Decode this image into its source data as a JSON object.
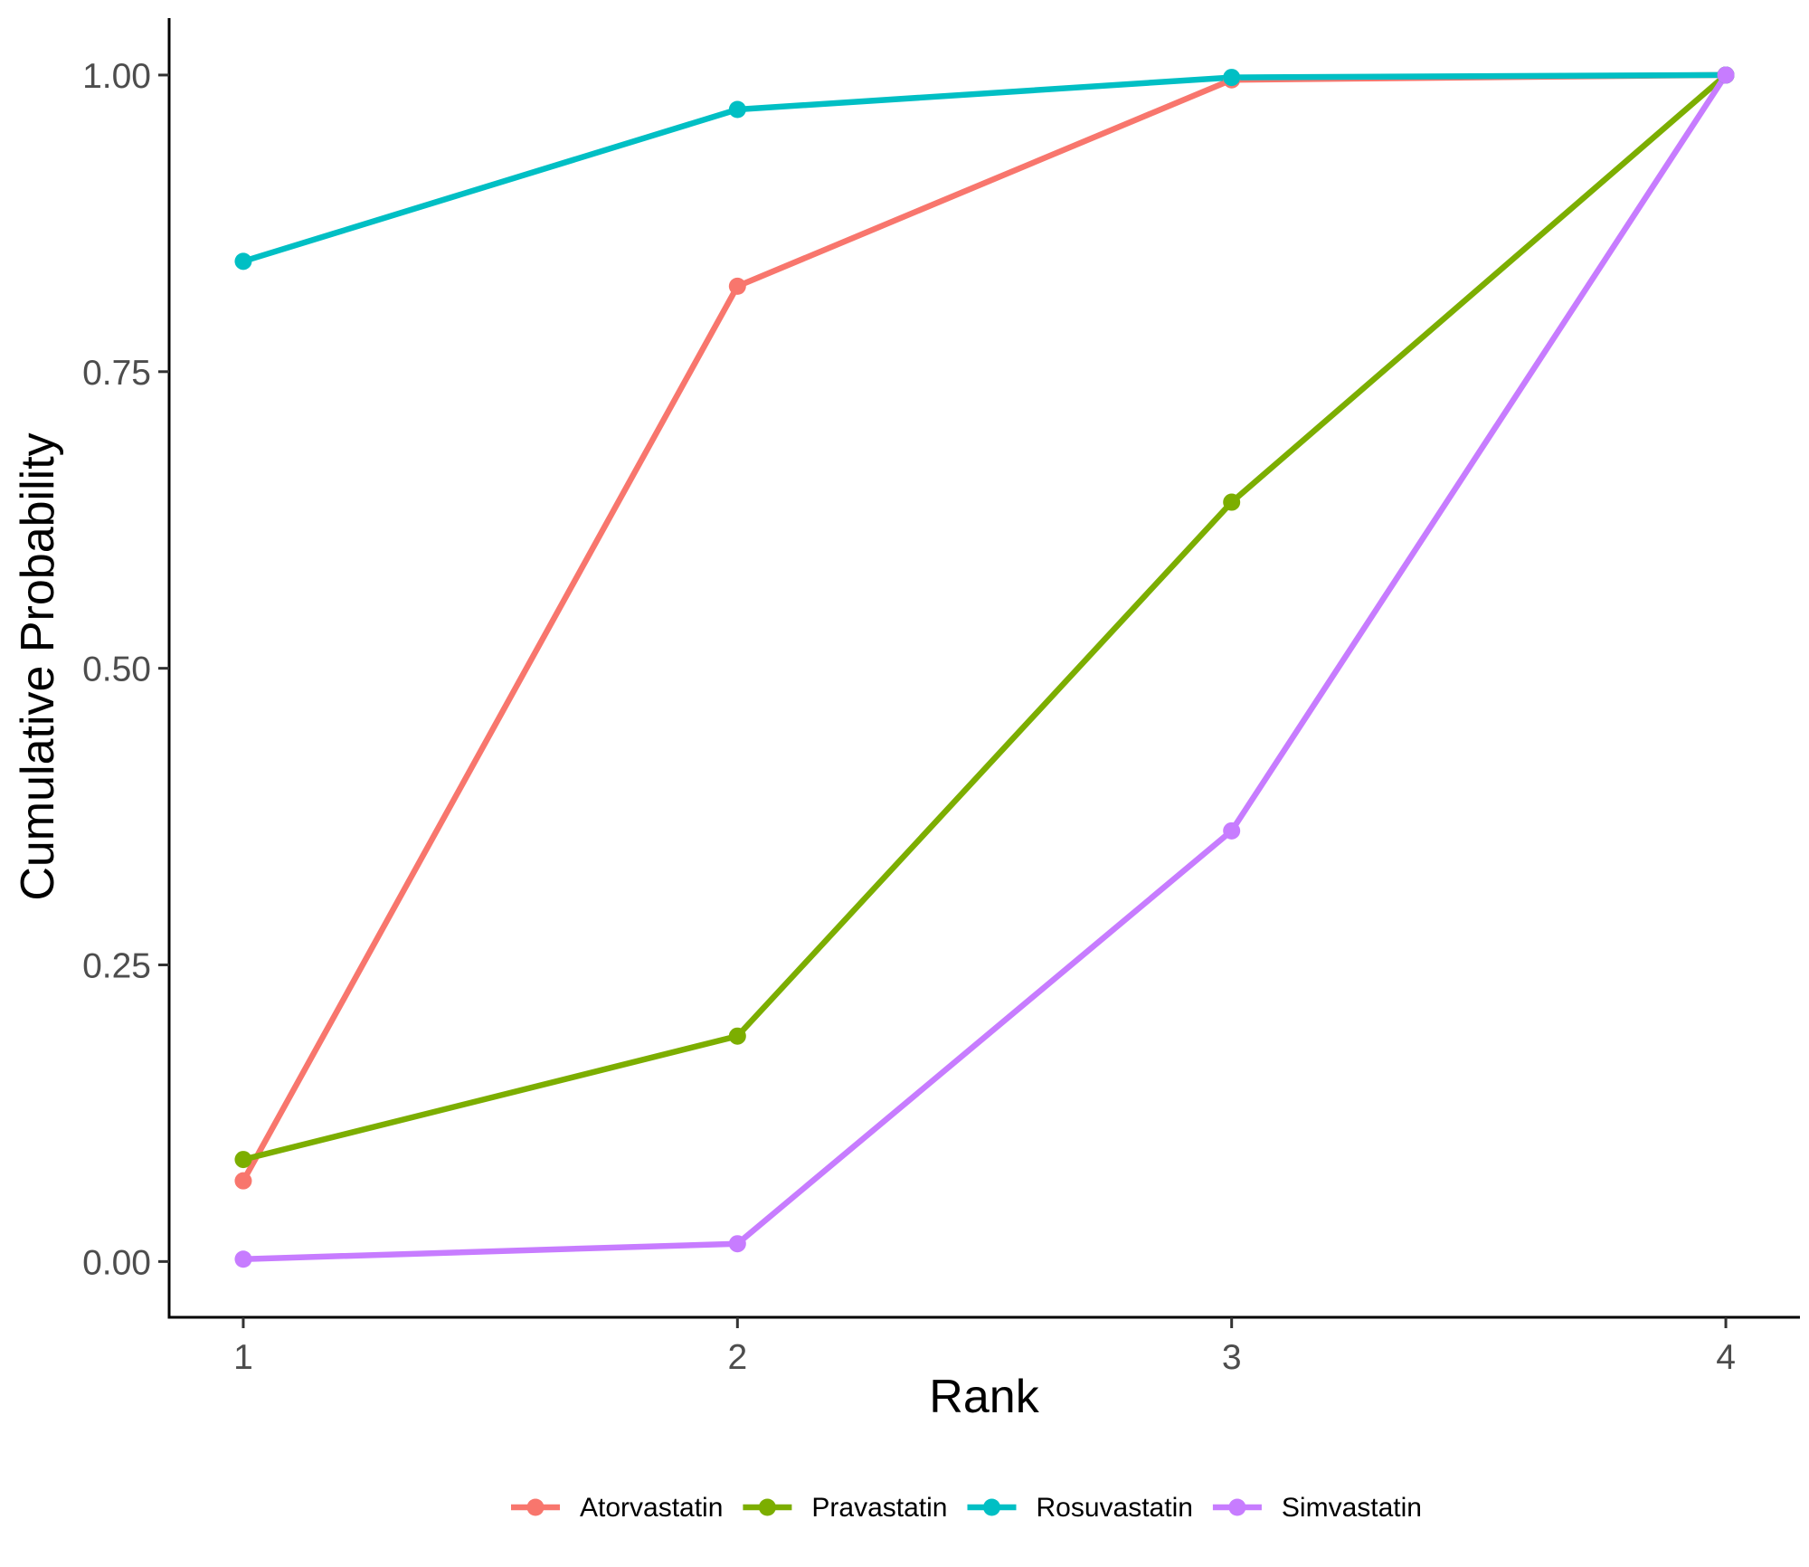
{
  "chart_data": {
    "type": "line",
    "title": "",
    "xlabel": "Rank",
    "ylabel": "Cumulative Probability",
    "x": [
      1,
      2,
      3,
      4
    ],
    "x_ticks": [
      "1",
      "2",
      "3",
      "4"
    ],
    "y_ticks": [
      "0.00",
      "0.25",
      "0.50",
      "0.75",
      "1.00"
    ],
    "y_tick_values": [
      0,
      0.25,
      0.5,
      0.75,
      1.0
    ],
    "xlim": [
      0.85,
      4.15
    ],
    "ylim": [
      -0.047,
      1.048
    ],
    "grid": false,
    "legend_position": "bottom",
    "series": [
      {
        "name": "Atorvastatin",
        "color": "#F8766D",
        "values": [
          0.068,
          0.822,
          0.996,
          1.0
        ]
      },
      {
        "name": "Pravastatin",
        "color": "#7CAE00",
        "values": [
          0.086,
          0.19,
          0.64,
          1.0
        ]
      },
      {
        "name": "Rosuvastatin",
        "color": "#00BFC4",
        "values": [
          0.843,
          0.971,
          0.998,
          1.0
        ]
      },
      {
        "name": "Simvastatin",
        "color": "#C77CFF",
        "values": [
          0.002,
          0.015,
          0.363,
          1.0
        ]
      }
    ]
  }
}
